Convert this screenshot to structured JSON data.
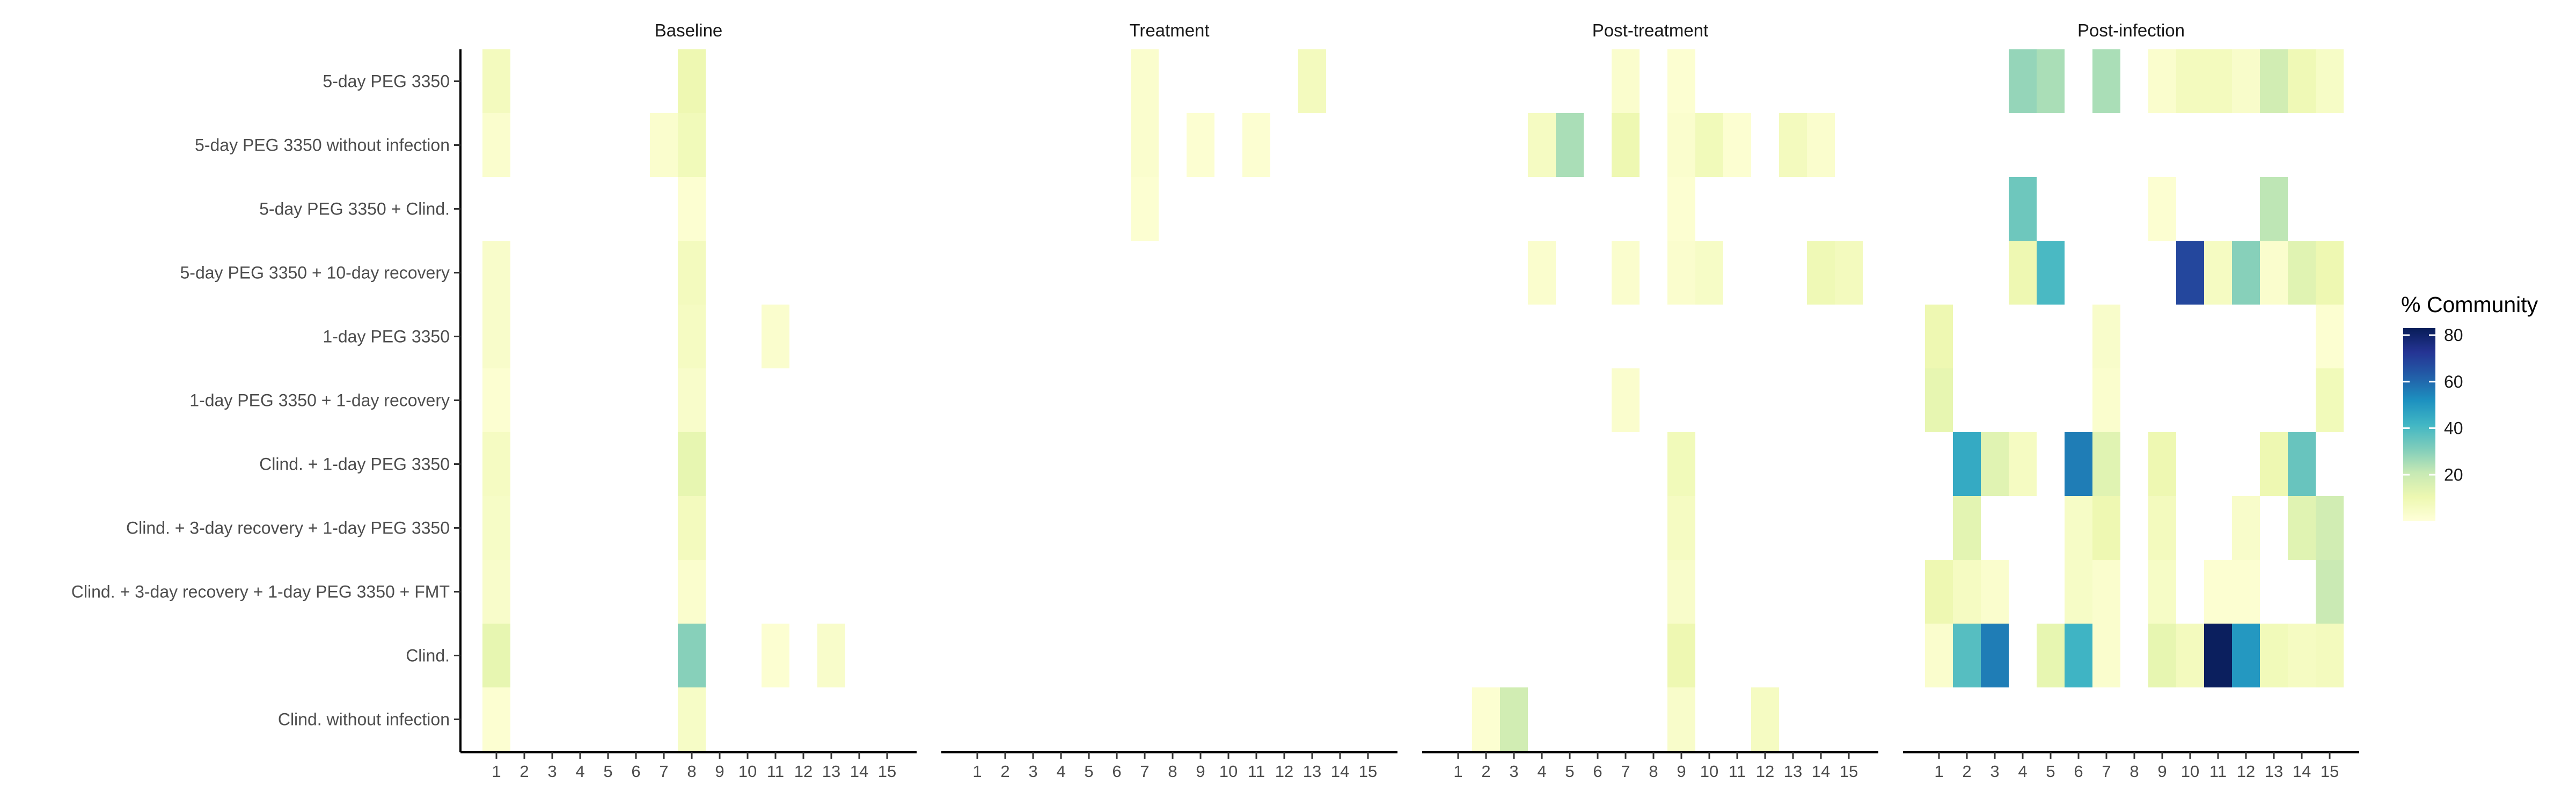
{
  "chart_data": {
    "type": "heatmap",
    "facets": [
      "Baseline",
      "Treatment",
      "Post-treatment",
      "Post-infection"
    ],
    "x_categories": [
      "1",
      "2",
      "3",
      "4",
      "5",
      "6",
      "7",
      "8",
      "9",
      "10",
      "11",
      "12",
      "13",
      "14",
      "15"
    ],
    "y_categories": [
      "5-day PEG 3350",
      "5-day PEG 3350 without infection",
      "5-day PEG 3350 + Clind.",
      "5-day PEG 3350 + 10-day recovery",
      "1-day PEG 3350",
      "1-day PEG 3350 + 1-day recovery",
      "Clind. + 1-day PEG 3350",
      "Clind. + 3-day recovery + 1-day PEG 3350",
      "Clind. + 3-day recovery + 1-day PEG 3350 + FMT",
      "Clind.",
      "Clind. without infection"
    ],
    "legend": {
      "title": "% Community",
      "ticks": [
        20,
        40,
        60,
        80
      ],
      "range": [
        0,
        83
      ],
      "colors": [
        "#ffffd9",
        "#edf8b1",
        "#c7e9b4",
        "#7fcdbb",
        "#41b6c4",
        "#1d91c0",
        "#225ea8",
        "#253494",
        "#081d58"
      ]
    },
    "cells": {
      "Baseline": [
        [
          0,
          1,
          7
        ],
        [
          0,
          8,
          10
        ],
        [
          1,
          1,
          3
        ],
        [
          1,
          7,
          3
        ],
        [
          1,
          8,
          8
        ],
        [
          2,
          8,
          2
        ],
        [
          3,
          1,
          4
        ],
        [
          3,
          8,
          7
        ],
        [
          4,
          1,
          4
        ],
        [
          4,
          8,
          6
        ],
        [
          4,
          11,
          3
        ],
        [
          5,
          1,
          2
        ],
        [
          5,
          8,
          4
        ],
        [
          6,
          1,
          6
        ],
        [
          6,
          8,
          12
        ],
        [
          7,
          1,
          5
        ],
        [
          7,
          8,
          7
        ],
        [
          8,
          1,
          4
        ],
        [
          8,
          8,
          3
        ],
        [
          9,
          1,
          12
        ],
        [
          9,
          8,
          30
        ],
        [
          9,
          11,
          2
        ],
        [
          9,
          13,
          4
        ],
        [
          10,
          1,
          2
        ],
        [
          10,
          8,
          5
        ]
      ],
      "Treatment": [
        [
          0,
          7,
          3
        ],
        [
          0,
          13,
          7
        ],
        [
          1,
          7,
          3
        ],
        [
          1,
          9,
          2
        ],
        [
          1,
          11,
          2
        ],
        [
          2,
          7,
          2
        ]
      ],
      "Post-treatment": [
        [
          0,
          7,
          3
        ],
        [
          0,
          9,
          2
        ],
        [
          1,
          4,
          6
        ],
        [
          1,
          5,
          25
        ],
        [
          1,
          7,
          10
        ],
        [
          1,
          9,
          3
        ],
        [
          1,
          10,
          8
        ],
        [
          1,
          11,
          2
        ],
        [
          1,
          13,
          7
        ],
        [
          1,
          14,
          3
        ],
        [
          2,
          9,
          2
        ],
        [
          3,
          4,
          3
        ],
        [
          3,
          7,
          3
        ],
        [
          3,
          9,
          3
        ],
        [
          3,
          10,
          5
        ],
        [
          3,
          14,
          9
        ],
        [
          3,
          15,
          7
        ],
        [
          5,
          7,
          3
        ],
        [
          6,
          9,
          8
        ],
        [
          7,
          9,
          6
        ],
        [
          8,
          9,
          4
        ],
        [
          9,
          9,
          10
        ],
        [
          10,
          2,
          2
        ],
        [
          10,
          3,
          18
        ],
        [
          10,
          9,
          4
        ],
        [
          10,
          12,
          6
        ]
      ],
      "Post-infection": [
        [
          0,
          4,
          28
        ],
        [
          0,
          5,
          25
        ],
        [
          0,
          7,
          25
        ],
        [
          0,
          9,
          3
        ],
        [
          0,
          10,
          7
        ],
        [
          0,
          11,
          7
        ],
        [
          0,
          12,
          4
        ],
        [
          0,
          13,
          18
        ],
        [
          0,
          14,
          9
        ],
        [
          0,
          15,
          5
        ],
        [
          2,
          4,
          34
        ],
        [
          2,
          9,
          2
        ],
        [
          2,
          13,
          22
        ],
        [
          3,
          4,
          10
        ],
        [
          3,
          5,
          40
        ],
        [
          3,
          10,
          68
        ],
        [
          3,
          11,
          6
        ],
        [
          3,
          12,
          30
        ],
        [
          3,
          13,
          3
        ],
        [
          3,
          14,
          14
        ],
        [
          3,
          15,
          10
        ],
        [
          4,
          1,
          10
        ],
        [
          4,
          7,
          4
        ],
        [
          4,
          15,
          2
        ],
        [
          5,
          1,
          12
        ],
        [
          5,
          7,
          3
        ],
        [
          5,
          15,
          8
        ],
        [
          6,
          2,
          45
        ],
        [
          6,
          3,
          14
        ],
        [
          6,
          4,
          6
        ],
        [
          6,
          6,
          56
        ],
        [
          6,
          7,
          14
        ],
        [
          6,
          9,
          10
        ],
        [
          6,
          13,
          10
        ],
        [
          6,
          14,
          35
        ],
        [
          7,
          2,
          13
        ],
        [
          7,
          6,
          5
        ],
        [
          7,
          7,
          10
        ],
        [
          7,
          9,
          7
        ],
        [
          7,
          12,
          4
        ],
        [
          7,
          14,
          14
        ],
        [
          7,
          15,
          18
        ],
        [
          8,
          1,
          10
        ],
        [
          8,
          2,
          6
        ],
        [
          8,
          3,
          3
        ],
        [
          8,
          6,
          5
        ],
        [
          8,
          7,
          3
        ],
        [
          8,
          9,
          5
        ],
        [
          8,
          11,
          2
        ],
        [
          8,
          12,
          2
        ],
        [
          8,
          15,
          20
        ],
        [
          9,
          1,
          3
        ],
        [
          9,
          2,
          38
        ],
        [
          9,
          3,
          56
        ],
        [
          9,
          5,
          12
        ],
        [
          9,
          6,
          42
        ],
        [
          9,
          7,
          3
        ],
        [
          9,
          9,
          12
        ],
        [
          9,
          10,
          7
        ],
        [
          9,
          11,
          82
        ],
        [
          9,
          12,
          50
        ],
        [
          9,
          13,
          8
        ],
        [
          9,
          14,
          6
        ],
        [
          9,
          15,
          7
        ]
      ]
    }
  }
}
